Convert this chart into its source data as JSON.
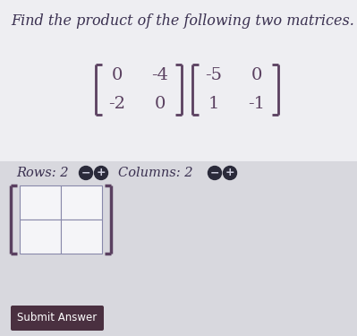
{
  "title": "Find the product of the following two matrices.",
  "title_fontsize": 11.5,
  "title_color": "#3a3050",
  "background_color": "#dcdce0",
  "top_bg_color": "#eeeef2",
  "panel_bg_color": "#d8d8de",
  "matrix1": [
    [
      0,
      -4
    ],
    [
      -2,
      0
    ]
  ],
  "matrix2": [
    [
      -5,
      0
    ],
    [
      1,
      -1
    ]
  ],
  "matrix_color": "#5a4060",
  "rows_label": "Rows: 2",
  "cols_label": "Columns: 2",
  "submit_label": "Submit Answer",
  "submit_bg": "#4a3040",
  "submit_text_color": "#ffffff",
  "label_fontsize": 10.5,
  "matrix_fontsize": 14,
  "cell_bg": "#f5f5f8",
  "cell_border": "#8888aa",
  "bracket_color": "#5a4060",
  "circle_dark": "#2a2a3a",
  "circle_outline": "#6a6a7a"
}
